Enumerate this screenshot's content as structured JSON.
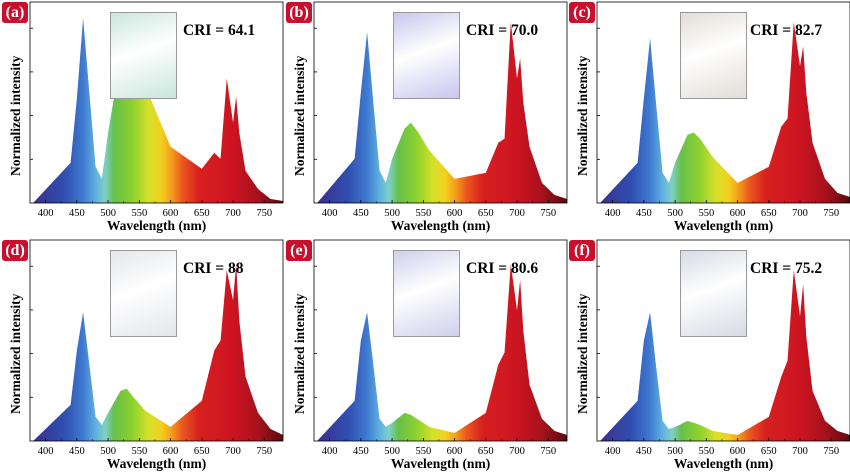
{
  "axis": {
    "xlabel": "Wavelength (nm)",
    "ylabel": "Normalized intensity",
    "xticks": [
      "400",
      "450",
      "500",
      "550",
      "600",
      "650",
      "700",
      "750"
    ]
  },
  "panels": [
    {
      "label": "(a)",
      "cri": "CRI = 64.1",
      "photo_tint": "#c9e6dc"
    },
    {
      "label": "(b)",
      "cri": "CRI = 70.0",
      "photo_tint": "#c8c6ee"
    },
    {
      "label": "(c)",
      "cri": "CRI = 82.7",
      "photo_tint": "#e2ddd6"
    },
    {
      "label": "(d)",
      "cri": "CRI = 88",
      "photo_tint": "#e4e6ea"
    },
    {
      "label": "(e)",
      "cri": "CRI = 80.6",
      "photo_tint": "#cfd0ec"
    },
    {
      "label": "(f)",
      "cri": "CRI = 75.2",
      "photo_tint": "#d6dae4"
    }
  ],
  "chart_data": [
    {
      "type": "area",
      "xlabel": "Wavelength (nm)",
      "ylabel": "Normalized intensity",
      "xlim": [
        375,
        780
      ],
      "x": [
        380,
        440,
        450,
        460,
        470,
        480,
        490,
        500,
        520,
        530,
        540,
        560,
        600,
        650,
        670,
        680,
        690,
        700,
        705,
        710,
        720,
        740,
        760,
        780
      ],
      "y": [
        0.0,
        0.2,
        0.52,
        0.92,
        0.55,
        0.18,
        0.12,
        0.35,
        0.72,
        0.77,
        0.73,
        0.58,
        0.28,
        0.17,
        0.25,
        0.22,
        0.62,
        0.4,
        0.53,
        0.35,
        0.16,
        0.07,
        0.02,
        0.01
      ]
    },
    {
      "type": "area",
      "xlabel": "Wavelength (nm)",
      "ylabel": "Normalized intensity",
      "xlim": [
        375,
        780
      ],
      "x": [
        380,
        440,
        450,
        460,
        470,
        480,
        490,
        500,
        520,
        530,
        540,
        560,
        600,
        650,
        670,
        680,
        690,
        700,
        705,
        710,
        720,
        740,
        760,
        780
      ],
      "y": [
        0.0,
        0.22,
        0.55,
        0.85,
        0.5,
        0.16,
        0.1,
        0.22,
        0.37,
        0.4,
        0.36,
        0.26,
        0.12,
        0.15,
        0.3,
        0.32,
        0.9,
        0.62,
        0.72,
        0.5,
        0.28,
        0.1,
        0.04,
        0.02
      ]
    },
    {
      "type": "area",
      "xlabel": "Wavelength (nm)",
      "ylabel": "Normalized intensity",
      "xlim": [
        375,
        780
      ],
      "x": [
        380,
        440,
        450,
        460,
        470,
        480,
        490,
        500,
        520,
        530,
        540,
        560,
        600,
        650,
        670,
        680,
        690,
        700,
        705,
        710,
        720,
        740,
        760,
        780
      ],
      "y": [
        0.0,
        0.2,
        0.52,
        0.82,
        0.48,
        0.15,
        0.1,
        0.2,
        0.34,
        0.35,
        0.32,
        0.23,
        0.1,
        0.18,
        0.38,
        0.42,
        0.9,
        0.68,
        0.78,
        0.55,
        0.3,
        0.12,
        0.05,
        0.03
      ]
    },
    {
      "type": "area",
      "xlabel": "Wavelength (nm)",
      "ylabel": "Normalized intensity",
      "xlim": [
        375,
        780
      ],
      "x": [
        380,
        440,
        450,
        460,
        470,
        480,
        490,
        500,
        520,
        530,
        540,
        560,
        600,
        650,
        670,
        680,
        690,
        700,
        705,
        710,
        720,
        740,
        760,
        780
      ],
      "y": [
        0.0,
        0.18,
        0.45,
        0.64,
        0.38,
        0.12,
        0.08,
        0.14,
        0.25,
        0.26,
        0.22,
        0.15,
        0.07,
        0.2,
        0.45,
        0.5,
        0.85,
        0.7,
        0.88,
        0.6,
        0.32,
        0.14,
        0.06,
        0.03
      ]
    },
    {
      "type": "area",
      "xlabel": "Wavelength (nm)",
      "ylabel": "Normalized intensity",
      "xlim": [
        375,
        780
      ],
      "x": [
        380,
        440,
        450,
        460,
        470,
        480,
        490,
        500,
        520,
        530,
        540,
        560,
        600,
        650,
        670,
        680,
        690,
        700,
        705,
        710,
        720,
        740,
        760,
        780
      ],
      "y": [
        0.0,
        0.2,
        0.5,
        0.64,
        0.38,
        0.11,
        0.07,
        0.09,
        0.14,
        0.13,
        0.11,
        0.07,
        0.04,
        0.14,
        0.38,
        0.44,
        0.88,
        0.65,
        0.8,
        0.55,
        0.28,
        0.11,
        0.05,
        0.03
      ]
    },
    {
      "type": "area",
      "xlabel": "Wavelength (nm)",
      "ylabel": "Normalized intensity",
      "xlim": [
        375,
        780
      ],
      "x": [
        380,
        440,
        450,
        460,
        470,
        480,
        490,
        500,
        520,
        530,
        540,
        560,
        600,
        650,
        670,
        680,
        690,
        700,
        705,
        710,
        720,
        740,
        760,
        780
      ],
      "y": [
        0.0,
        0.2,
        0.5,
        0.64,
        0.36,
        0.1,
        0.06,
        0.07,
        0.1,
        0.09,
        0.08,
        0.05,
        0.03,
        0.12,
        0.32,
        0.4,
        0.85,
        0.62,
        0.78,
        0.52,
        0.25,
        0.1,
        0.05,
        0.03
      ]
    }
  ]
}
